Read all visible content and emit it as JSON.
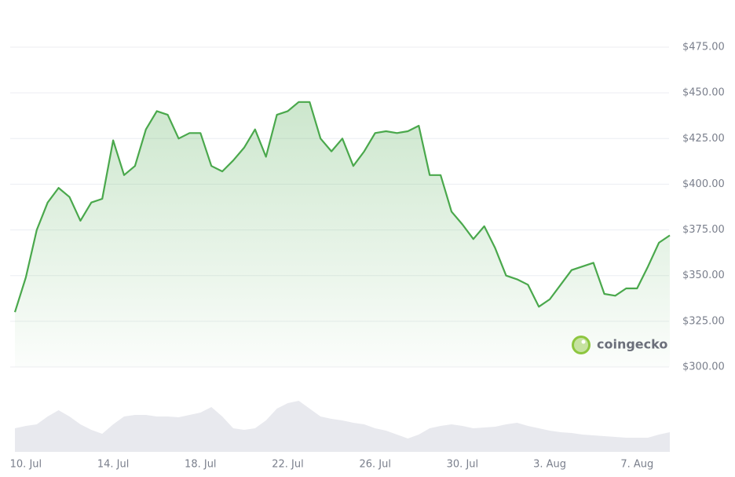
{
  "chart_data": {
    "type": "line",
    "categories": [
      null,
      "10. Jul",
      null,
      null,
      null,
      null,
      null,
      null,
      null,
      "14. Jul",
      null,
      null,
      null,
      null,
      null,
      null,
      null,
      "18. Jul",
      null,
      null,
      null,
      null,
      null,
      null,
      null,
      "22. Jul",
      null,
      null,
      null,
      null,
      null,
      null,
      null,
      "26. Jul",
      null,
      null,
      null,
      null,
      null,
      null,
      null,
      "30. Jul",
      null,
      null,
      null,
      null,
      null,
      null,
      null,
      "3. Aug",
      null,
      null,
      null,
      null,
      null,
      null,
      null,
      "7. Aug",
      null,
      null,
      null
    ],
    "series": [
      {
        "name": "Price",
        "color": "#4aa84c",
        "values": [
          330,
          349,
          375,
          390,
          398,
          393,
          380,
          390,
          392,
          424,
          405,
          410,
          430,
          440,
          438,
          425,
          428,
          428,
          410,
          407,
          413,
          420,
          430,
          415,
          438,
          440,
          445,
          445,
          425,
          418,
          425,
          410,
          418,
          428,
          429,
          428,
          429,
          432,
          405,
          405,
          385,
          378,
          370,
          377,
          365,
          350,
          348,
          345,
          333,
          337,
          345,
          353,
          355,
          357,
          340,
          339,
          343,
          343,
          355,
          368,
          372
        ]
      },
      {
        "name": "Volume",
        "color": "#e8e9ee",
        "axis": "y2",
        "values": [
          30,
          33,
          35,
          45,
          53,
          45,
          35,
          28,
          23,
          35,
          45,
          47,
          47,
          45,
          45,
          44,
          47,
          50,
          57,
          45,
          30,
          28,
          30,
          40,
          55,
          62,
          65,
          55,
          45,
          42,
          40,
          37,
          35,
          30,
          27,
          22,
          17,
          22,
          30,
          33,
          35,
          33,
          30,
          31,
          32,
          35,
          37,
          33,
          30,
          27,
          25,
          24,
          22,
          21,
          20,
          19,
          18,
          18,
          18,
          22,
          25
        ]
      }
    ],
    "ylim": [
      300,
      475
    ],
    "yticks": [
      {
        "value": 300,
        "label": "$300.00"
      },
      {
        "value": 325,
        "label": "$325.00"
      },
      {
        "value": 350,
        "label": "$350.00"
      },
      {
        "value": 375,
        "label": "$375.00"
      },
      {
        "value": 400,
        "label": "$400.00"
      },
      {
        "value": 425,
        "label": "$425.00"
      },
      {
        "value": 450,
        "label": "$450.00"
      },
      {
        "value": 475,
        "label": "$475.00"
      }
    ],
    "y2lim": [
      0,
      100
    ],
    "grid": true,
    "watermark": "coingecko"
  }
}
